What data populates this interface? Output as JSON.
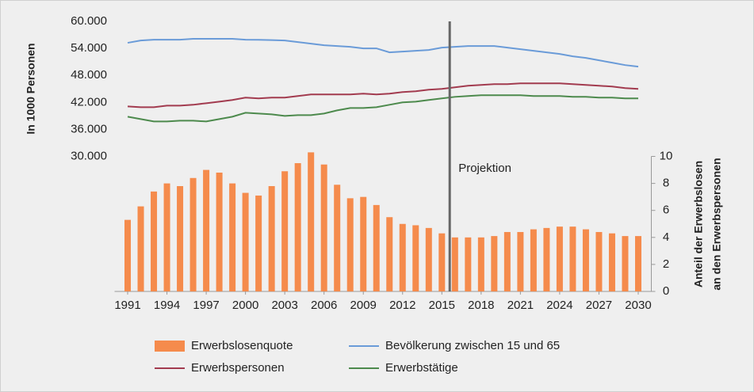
{
  "chart_data": {
    "type": "combo",
    "ylabel": "In 1000 Personen",
    "y2label": [
      "Anteil der Erwerbslosen",
      "an den Erwerbspersonen"
    ],
    "annotation": "Projektion",
    "projection_x": 2015.6,
    "x": [
      1991,
      1992,
      1993,
      1994,
      1995,
      1996,
      1997,
      1998,
      1999,
      2000,
      2001,
      2002,
      2003,
      2004,
      2005,
      2006,
      2007,
      2008,
      2009,
      2010,
      2011,
      2012,
      2013,
      2014,
      2015,
      2016,
      2017,
      2018,
      2019,
      2020,
      2021,
      2022,
      2023,
      2024,
      2025,
      2026,
      2027,
      2028,
      2029,
      2030
    ],
    "xlim": [
      1990,
      2031
    ],
    "xticks": [
      1991,
      1994,
      1997,
      2000,
      2003,
      2006,
      2009,
      2012,
      2015,
      2018,
      2021,
      2024,
      2027,
      2030
    ],
    "ylim": [
      0,
      60000
    ],
    "yticks": [
      {
        "value": 30000,
        "label": "30.000"
      },
      {
        "value": 36000,
        "label": "36.000"
      },
      {
        "value": 42000,
        "label": "42.000"
      },
      {
        "value": 48000,
        "label": "48.000"
      },
      {
        "value": 54000,
        "label": "54.000"
      },
      {
        "value": 60000,
        "label": "60.000"
      }
    ],
    "y2lim": [
      0,
      20
    ],
    "y2ticks": [
      0,
      2,
      4,
      6,
      8,
      10
    ],
    "series": [
      {
        "name": "Erwerbslosenquote",
        "type": "bar",
        "axis": "y2",
        "color": "#f58b4c",
        "values": [
          5.3,
          6.3,
          7.4,
          8.0,
          7.8,
          8.4,
          9.0,
          8.8,
          8.0,
          7.3,
          7.1,
          7.8,
          8.9,
          9.5,
          10.3,
          9.4,
          7.9,
          6.9,
          7.0,
          6.4,
          5.5,
          5.0,
          4.9,
          4.7,
          4.3,
          4.0,
          4.0,
          4.0,
          4.1,
          4.4,
          4.4,
          4.6,
          4.7,
          4.8,
          4.8,
          4.6,
          4.4,
          4.3,
          4.1,
          4.1
        ]
      },
      {
        "name": "Bevölkerung zwischen 15 und 65",
        "type": "line",
        "color": "#6a9bd8",
        "values": [
          55240,
          55760,
          55940,
          55940,
          55940,
          56120,
          56120,
          56120,
          56120,
          55940,
          55900,
          55850,
          55760,
          55400,
          55060,
          54700,
          54530,
          54350,
          54000,
          54000,
          53120,
          53290,
          53470,
          53650,
          54180,
          54350,
          54530,
          54530,
          54530,
          54180,
          53820,
          53470,
          53120,
          52760,
          52230,
          51880,
          51350,
          50820,
          50290,
          49940
        ]
      },
      {
        "name": "Erwerbspersonen",
        "type": "line",
        "color": "#a23b4f",
        "values": [
          41110,
          40940,
          40940,
          41290,
          41290,
          41470,
          41820,
          42170,
          42530,
          43060,
          42880,
          43060,
          43060,
          43410,
          43760,
          43760,
          43760,
          43760,
          43940,
          43760,
          43940,
          44290,
          44470,
          44820,
          45000,
          45350,
          45700,
          45880,
          46060,
          46060,
          46230,
          46230,
          46230,
          46230,
          46060,
          45880,
          45700,
          45530,
          45180,
          45000
        ]
      },
      {
        "name": "Erwerbstätige",
        "type": "line",
        "color": "#4d8a4d",
        "values": [
          38820,
          38290,
          37760,
          37760,
          37940,
          37940,
          37760,
          38290,
          38820,
          39700,
          39530,
          39350,
          39000,
          39180,
          39180,
          39530,
          40230,
          40760,
          40760,
          40940,
          41470,
          42000,
          42170,
          42530,
          42880,
          43230,
          43410,
          43590,
          43590,
          43590,
          43590,
          43410,
          43410,
          43410,
          43230,
          43230,
          43060,
          43060,
          42880,
          42880
        ]
      }
    ]
  }
}
